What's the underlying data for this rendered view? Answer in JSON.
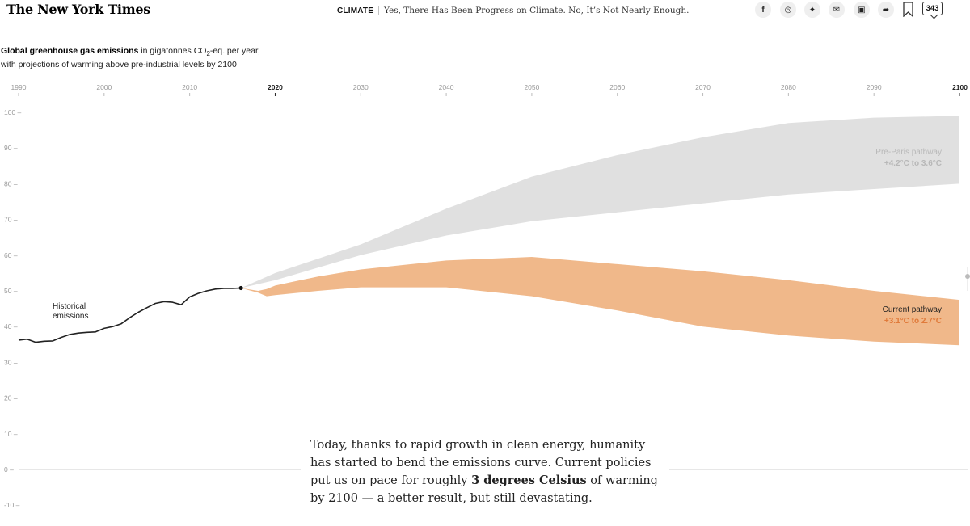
{
  "header": {
    "logo": "The New York Times",
    "section": "CLIMATE",
    "headline": "Yes, There Has Been Progress on Climate. No, It’s Not Nearly Enough.",
    "comment_count": "343",
    "share_icons": [
      {
        "name": "facebook-icon",
        "glyph": "f"
      },
      {
        "name": "whatsapp-icon",
        "glyph": "◎"
      },
      {
        "name": "twitter-icon",
        "glyph": "✦"
      },
      {
        "name": "email-icon",
        "glyph": "✉"
      },
      {
        "name": "gift-icon",
        "glyph": "▣"
      },
      {
        "name": "share-icon",
        "glyph": "➦"
      }
    ]
  },
  "chart_title": {
    "bold": "Global greenhouse gas emissions",
    "rest_1": " in gigatonnes CO",
    "subscript": "2",
    "rest_2": "-eq. per year,",
    "line2": "with projections of warming above pre-industrial levels by 2100"
  },
  "caption": {
    "part1": "Today, thanks to rapid growth in clean energy, humanity has started to bend the emissions curve. Current policies put us on pace for roughly ",
    "bold": "3 degrees Celsius",
    "part2": " of warming by 2100 — a better result, but still devastating."
  },
  "chart_data": {
    "type": "area",
    "xlim": [
      1990,
      2100
    ],
    "ylim": [
      -10,
      100
    ],
    "x_ticks": [
      1990,
      2000,
      2010,
      2020,
      2030,
      2040,
      2050,
      2060,
      2070,
      2080,
      2090,
      2100
    ],
    "x_ticks_bold": [
      2020,
      2100
    ],
    "y_ticks": [
      100,
      90,
      80,
      70,
      60,
      50,
      40,
      30,
      20,
      10,
      0,
      -10
    ],
    "colors": {
      "historical": "#222222",
      "pre_paris": "#e0e0e0",
      "current": "#f0b88a",
      "current_label": "#e07a3a",
      "pre_paris_label": "#b8b8b8"
    },
    "series": [
      {
        "name": "Historical emissions",
        "kind": "line",
        "x": [
          1990,
          1991,
          1992,
          1993,
          1994,
          1995,
          1996,
          1997,
          1998,
          1999,
          2000,
          2001,
          2002,
          2003,
          2004,
          2005,
          2006,
          2007,
          2008,
          2009,
          2010,
          2011,
          2012,
          2013,
          2014,
          2015,
          2016
        ],
        "y": [
          36.2,
          36.5,
          35.6,
          35.9,
          36.0,
          37.0,
          37.8,
          38.2,
          38.4,
          38.5,
          39.5,
          40.0,
          40.8,
          42.5,
          44.0,
          45.3,
          46.5,
          47.0,
          46.8,
          46.1,
          48.3,
          49.3,
          50.0,
          50.5,
          50.7,
          50.7,
          50.8
        ]
      },
      {
        "name": "Pre-Paris pathway",
        "range_label": "+4.2°C to 3.6°C",
        "kind": "band",
        "x": [
          2016,
          2020,
          2030,
          2040,
          2050,
          2060,
          2070,
          2080,
          2090,
          2100
        ],
        "upper": [
          50.8,
          55,
          63,
          73,
          82,
          88,
          93,
          97,
          98.5,
          99
        ],
        "lower": [
          50.8,
          53,
          60,
          65.5,
          69.5,
          72,
          74.5,
          77,
          78.5,
          80
        ]
      },
      {
        "name": "Current pathway",
        "range_label": "+3.1°C to 2.7°C",
        "kind": "band",
        "x": [
          2016,
          2018,
          2019,
          2020,
          2022,
          2025,
          2030,
          2040,
          2050,
          2060,
          2070,
          2080,
          2090,
          2100
        ],
        "upper": [
          50.8,
          50,
          50.5,
          51.5,
          52.5,
          54,
          56,
          58.5,
          59.5,
          57.5,
          55.5,
          53,
          50,
          47.5
        ],
        "lower": [
          50.8,
          49.5,
          48.5,
          48.8,
          49.3,
          50,
          51,
          51,
          48.5,
          44.5,
          40,
          37.5,
          35.8,
          34.8
        ]
      }
    ]
  }
}
